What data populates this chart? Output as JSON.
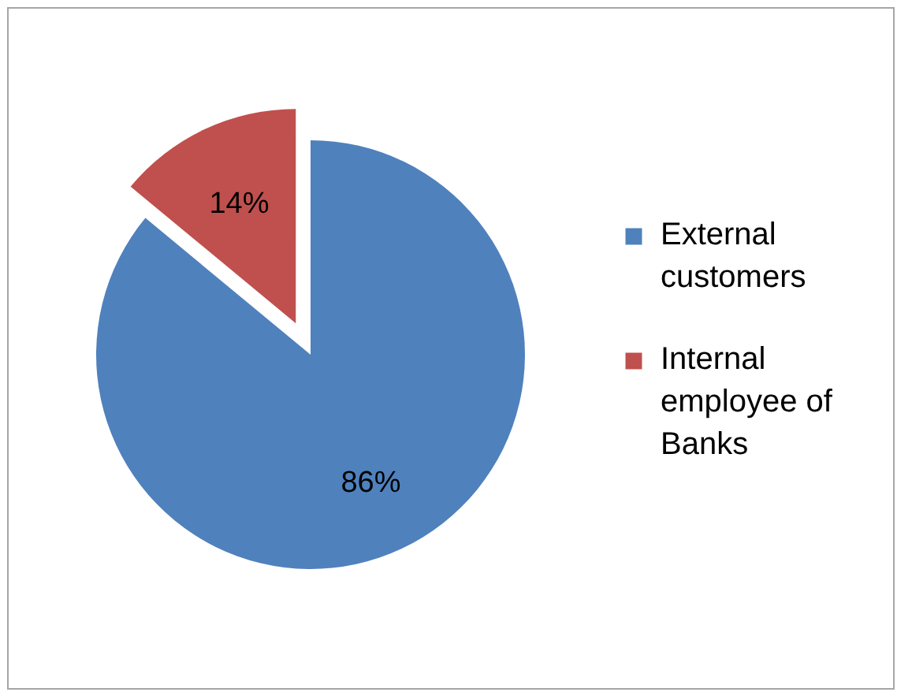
{
  "chart_data": {
    "type": "pie",
    "categories": [
      "External customers",
      "Internal employee of Banks"
    ],
    "values": [
      86,
      14
    ],
    "colors": [
      "#4f81bd",
      "#c0504d"
    ],
    "value_labels": [
      "86%",
      "14%"
    ],
    "legend": "right"
  }
}
